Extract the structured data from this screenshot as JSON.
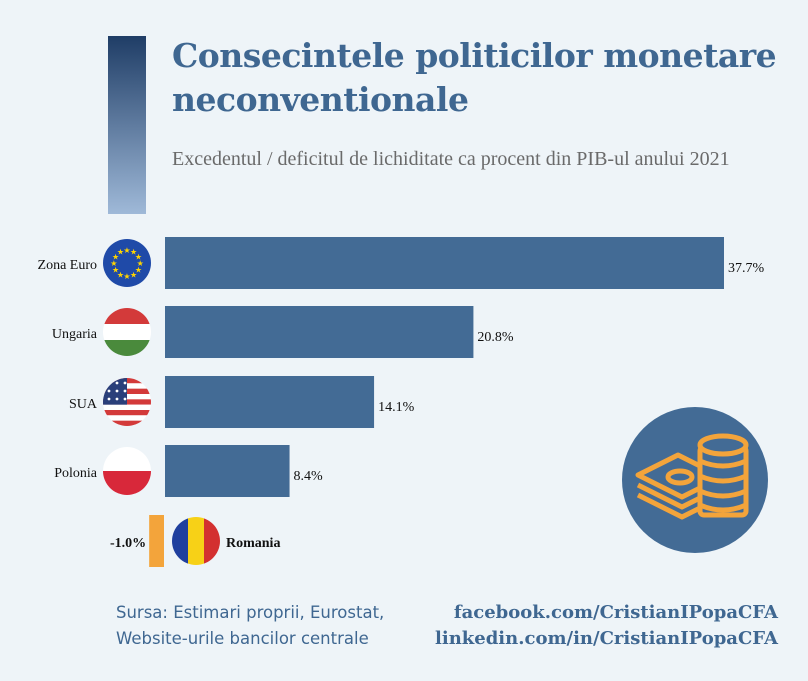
{
  "title": "Consecintele politicilor monetare neconventionale",
  "subtitle": "Excedentul / deficitul de lichiditate ca procent din PIB-ul anului 2021",
  "chart_data": {
    "type": "bar",
    "orientation": "horizontal",
    "categories": [
      "Zona Euro",
      "Ungaria",
      "SUA",
      "Polonia",
      "Romania"
    ],
    "values": [
      37.7,
      20.8,
      14.1,
      8.4,
      -1.0
    ],
    "value_labels": [
      "37.7%",
      "20.8%",
      "14.1%",
      "8.4%",
      "-1.0%"
    ],
    "positive_color": "#436b95",
    "negative_color": "#f3a43b",
    "flag_icons": [
      "eu-flag-icon",
      "hungary-flag-icon",
      "usa-flag-icon",
      "poland-flag-icon",
      "romania-flag-icon"
    ]
  },
  "footer": {
    "source_line1": "Sursa: Estimari proprii, Eurostat,",
    "source_line2": "Website-urile bancilor centrale",
    "facebook": "facebook.com/CristianIPopaCFA",
    "linkedin": "linkedin.com/in/CristianIPopaCFA"
  },
  "colors": {
    "background": "#eef4f8",
    "title": "#3f6791",
    "badge": "#436b95",
    "badge_icon": "#f3a43b"
  },
  "badge_icon": "money-stack-icon"
}
